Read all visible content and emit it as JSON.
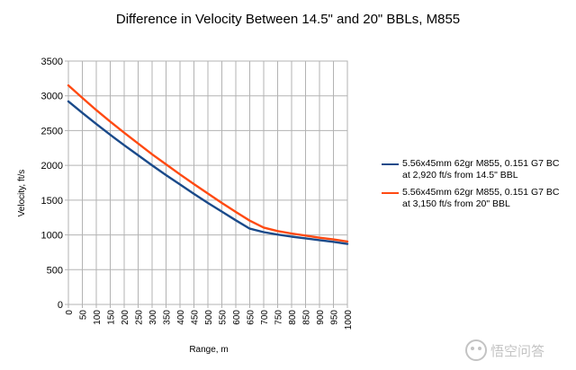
{
  "chart_data": {
    "type": "line",
    "title": "Difference in Velocity Between 14.5\" and 20\" BBLs, M855",
    "xlabel": "Range, m",
    "ylabel": "Velocity, ft/s",
    "xlim": [
      0,
      1000
    ],
    "ylim": [
      0,
      3500
    ],
    "x_ticks": [
      0,
      50,
      100,
      150,
      200,
      250,
      300,
      350,
      400,
      450,
      500,
      550,
      600,
      650,
      700,
      750,
      800,
      850,
      900,
      950,
      1000
    ],
    "y_ticks": [
      0,
      500,
      1000,
      1500,
      2000,
      2500,
      3000,
      3500
    ],
    "grid": true,
    "legend_position": "right",
    "x": [
      0,
      50,
      100,
      150,
      200,
      250,
      300,
      350,
      400,
      450,
      500,
      550,
      600,
      650,
      700,
      750,
      800,
      850,
      900,
      950,
      1000
    ],
    "series": [
      {
        "name": "5.56x45mm 62gr M855, 0.151 G7 BC\nat 2,920 ft/s from 14.5\" BBL",
        "color": "#1a4a8a",
        "values": [
          2920,
          2755,
          2595,
          2440,
          2290,
          2145,
          2000,
          1860,
          1725,
          1590,
          1460,
          1335,
          1210,
          1090,
          1040,
          1005,
          975,
          950,
          925,
          900,
          870
        ]
      },
      {
        "name": "5.56x45mm 62gr M855, 0.151 G7 BC\nat 3,150 ft/s from 20\" BBL",
        "color": "#ff4a12",
        "values": [
          3150,
          2970,
          2795,
          2630,
          2470,
          2315,
          2160,
          2015,
          1870,
          1730,
          1595,
          1460,
          1330,
          1205,
          1105,
          1055,
          1020,
          990,
          960,
          935,
          905
        ]
      }
    ]
  },
  "watermark": {
    "icon": "wukong-logo-icon",
    "text": "悟空问答"
  }
}
